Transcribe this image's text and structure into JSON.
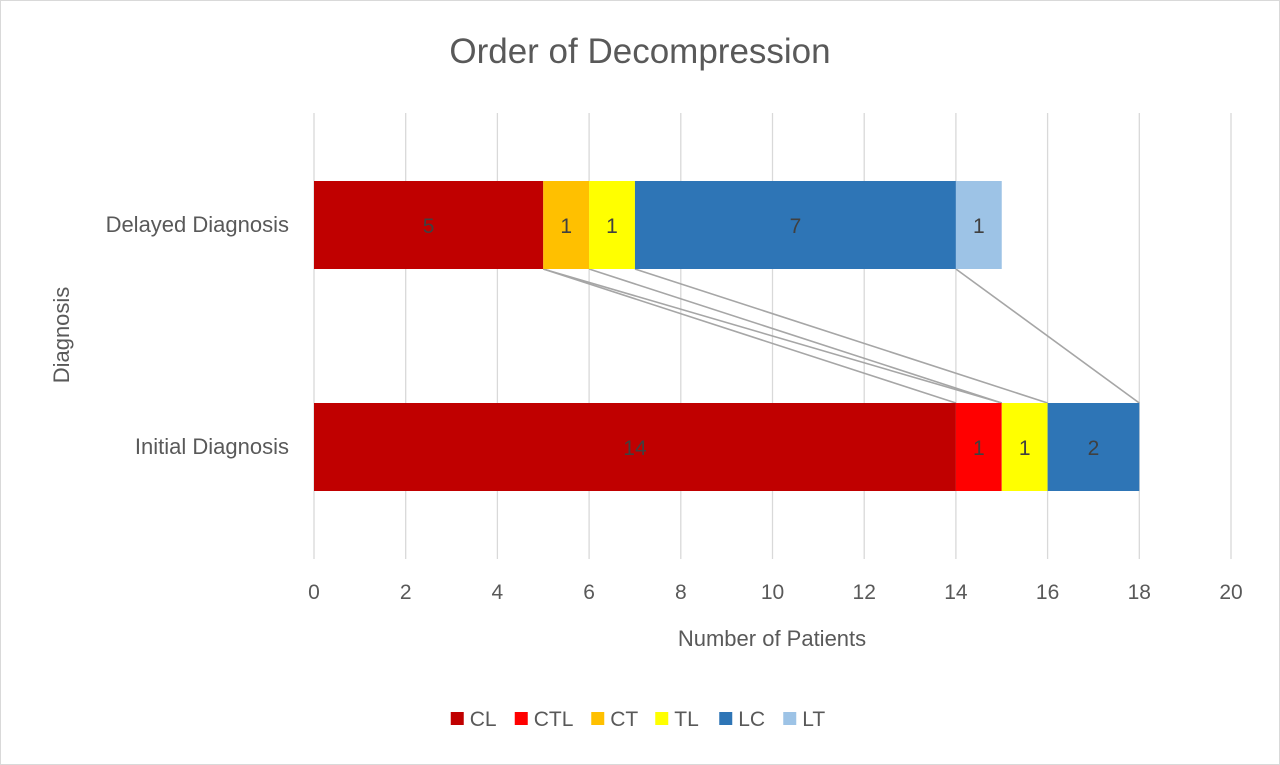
{
  "chart_data": {
    "type": "bar",
    "orientation": "horizontal",
    "stacked": true,
    "title": "Order of Decompression",
    "xlabel": "Number of Patients",
    "ylabel": "Diagnosis",
    "xlim": [
      0,
      20
    ],
    "xticks": [
      0,
      2,
      4,
      6,
      8,
      10,
      12,
      14,
      16,
      18,
      20
    ],
    "grid": true,
    "legend_position": "bottom",
    "series_lines": true,
    "categories": [
      "Delayed Diagnosis",
      "Initial Diagnosis"
    ],
    "series": [
      {
        "name": "CL",
        "color": "#C00000",
        "values": [
          5,
          14
        ]
      },
      {
        "name": "CTL",
        "color": "#FF0000",
        "values": [
          0,
          1
        ]
      },
      {
        "name": "CT",
        "color": "#FFC000",
        "values": [
          1,
          0
        ]
      },
      {
        "name": "TL",
        "color": "#FFFF00",
        "values": [
          1,
          1
        ]
      },
      {
        "name": "LC",
        "color": "#2E75B6",
        "values": [
          7,
          2
        ]
      },
      {
        "name": "LT",
        "color": "#9DC3E6",
        "values": [
          1,
          0
        ]
      }
    ]
  }
}
